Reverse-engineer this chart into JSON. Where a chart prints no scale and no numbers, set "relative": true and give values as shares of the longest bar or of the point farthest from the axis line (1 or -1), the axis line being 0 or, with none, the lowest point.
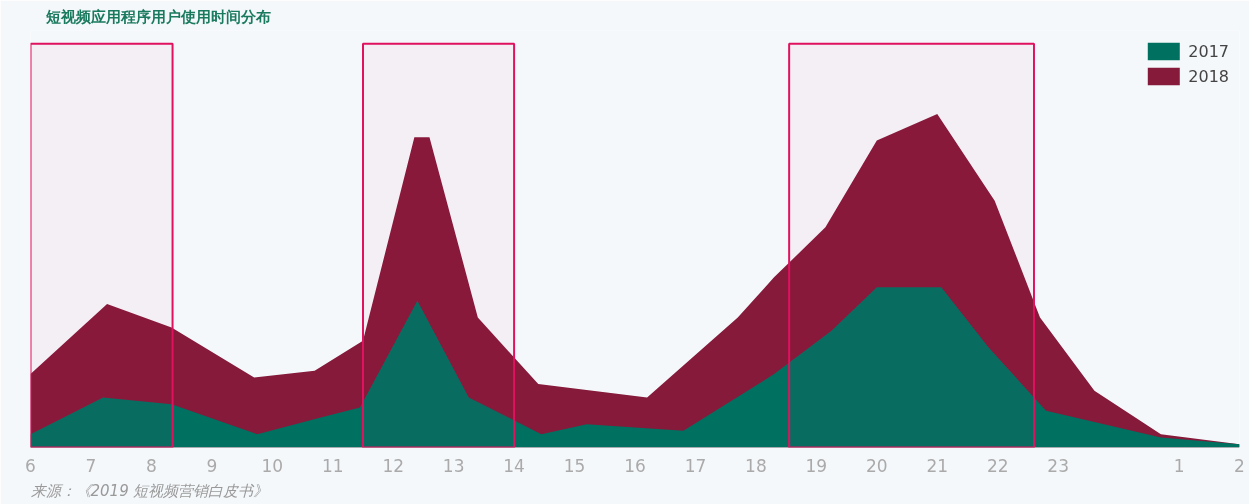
{
  "chart_data": {
    "type": "area",
    "title": "短视频应用程序用户使用时间分布",
    "relative": true,
    "series": [
      {
        "name": "2018",
        "color": "#851a3a",
        "x": [
          "2019-01-01T06:00",
          "2019-01-01T07:16",
          "2019-01-01T08:20",
          "2019-01-01T09:42",
          "2019-01-01T10:42",
          "2019-01-01T11:30",
          "2019-01-01T12:21",
          "2019-01-01T12:36",
          "2019-01-01T13:24",
          "2019-01-01T14:24",
          "2019-01-01T16:12",
          "2019-01-01T17:42",
          "2019-01-01T18:18",
          "2019-01-01T19:09",
          "2019-01-01T20:00",
          "2019-01-01T21:00",
          "2019-01-01T21:57",
          "2019-01-01T22:42",
          "2019-01-01T23:36",
          "2019-01-02T00:42",
          "2019-01-02T02:00"
        ],
        "values": [
          0.22,
          0.43,
          0.36,
          0.21,
          0.23,
          0.32,
          0.93,
          0.93,
          0.39,
          0.19,
          0.15,
          0.39,
          0.51,
          0.66,
          0.92,
          1.0,
          0.74,
          0.39,
          0.17,
          0.04,
          0.01
        ]
      },
      {
        "name": "2017",
        "color": "#007060",
        "x": [
          "2019-01-01T06:00",
          "2019-01-01T07:12",
          "2019-01-01T08:20",
          "2019-01-01T09:45",
          "2019-01-01T10:48",
          "2019-01-01T11:27",
          "2019-01-01T12:24",
          "2019-01-01T13:15",
          "2019-01-01T13:48",
          "2019-01-01T14:27",
          "2019-01-01T15:12",
          "2019-01-01T16:48",
          "2019-01-01T18:18",
          "2019-01-01T19:15",
          "2019-01-01T20:00",
          "2019-01-01T21:04",
          "2019-01-01T21:51",
          "2019-01-01T22:12",
          "2019-01-01T22:48",
          "2019-01-02T00:42",
          "2019-01-02T02:00"
        ],
        "values": [
          0.04,
          0.15,
          0.13,
          0.04,
          0.09,
          0.12,
          0.44,
          0.15,
          0.1,
          0.04,
          0.07,
          0.05,
          0.22,
          0.35,
          0.48,
          0.48,
          0.3,
          0.23,
          0.11,
          0.03,
          0.01
        ]
      }
    ],
    "xlim": [
      "2019-01-01T06:00",
      "2019-01-02T02:00"
    ],
    "xticks": [
      {
        "value": "2019-01-01T06:00",
        "label": "6"
      },
      {
        "value": "2019-01-01T07:00",
        "label": "7"
      },
      {
        "value": "2019-01-01T08:00",
        "label": "8"
      },
      {
        "value": "2019-01-01T09:00",
        "label": "9"
      },
      {
        "value": "2019-01-01T10:00",
        "label": "10"
      },
      {
        "value": "2019-01-01T11:00",
        "label": "11"
      },
      {
        "value": "2019-01-01T12:00",
        "label": "12"
      },
      {
        "value": "2019-01-01T13:00",
        "label": "13"
      },
      {
        "value": "2019-01-01T14:00",
        "label": "14"
      },
      {
        "value": "2019-01-01T15:00",
        "label": "15"
      },
      {
        "value": "2019-01-01T16:00",
        "label": "16"
      },
      {
        "value": "2019-01-01T17:00",
        "label": "17"
      },
      {
        "value": "2019-01-01T18:00",
        "label": "18"
      },
      {
        "value": "2019-01-01T19:00",
        "label": "19"
      },
      {
        "value": "2019-01-01T20:00",
        "label": "20"
      },
      {
        "value": "2019-01-01T21:00",
        "label": "21"
      },
      {
        "value": "2019-01-01T22:00",
        "label": "22"
      },
      {
        "value": "2019-01-01T23:00",
        "label": "23"
      },
      {
        "value": "2019-01-02T01:00",
        "label": "1"
      },
      {
        "value": "2019-01-02T02:00",
        "label": "2"
      }
    ],
    "bands": [
      {
        "axis": "x",
        "from": "2019-01-01T06:00",
        "to": "2019-01-01T08:21",
        "color": "#e0115f"
      },
      {
        "axis": "x",
        "from": "2019-01-01T11:30",
        "to": "2019-01-01T14:00",
        "color": "#e0115f"
      },
      {
        "axis": "x",
        "from": "2019-01-01T18:33",
        "to": "2019-01-01T22:36",
        "color": "#e0115f"
      }
    ],
    "legend": "top right",
    "grid": false,
    "annotations": [
      "来源：《2019 短视频营销白皮书》"
    ]
  }
}
